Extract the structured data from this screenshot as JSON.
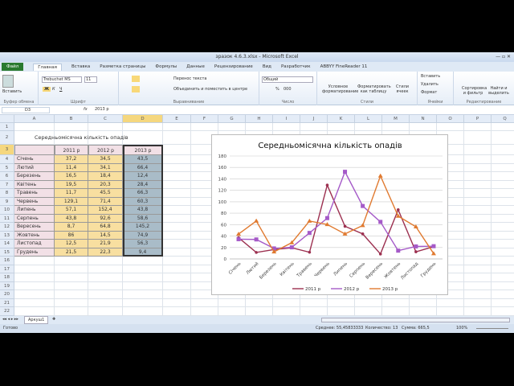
{
  "window": {
    "title": "зразок 4.6.3.xlsx - Microsoft Excel"
  },
  "ribbon_tabs": [
    "Файл",
    "Главная",
    "Вставка",
    "Разметка страницы",
    "Формулы",
    "Данные",
    "Рецензирование",
    "Вид",
    "Разработчик",
    "ABBYY FineReader 11"
  ],
  "ribbon": {
    "paste": "Вставить",
    "clipboard": "Буфер обмена",
    "font_name": "Trebuchet MS",
    "font_size": "11",
    "font_group": "Шрифт",
    "bold": "Ж",
    "italic": "К",
    "underline": "Ч",
    "wrap": "Перенос текста",
    "merge": "Объединить и поместить в центре",
    "align_group": "Выравнивание",
    "number_format": "Общий",
    "percent": "%",
    "thousands": "000",
    "number_group": "Число",
    "cond_format": "Условное форматирование",
    "format_table": "Форматировать как таблицу",
    "cell_styles": "Стили ячеек",
    "styles_group": "Стили",
    "insert": "Вставить",
    "delete": "Удалить",
    "format": "Формат",
    "cells_group": "Ячейки",
    "sort": "Сортировка и фильтр",
    "find": "Найти и выделить",
    "editing_group": "Редактирование"
  },
  "formula_bar": {
    "name_box": "D3",
    "fx": "fx",
    "value": "2013 р"
  },
  "columns": [
    "A",
    "B",
    "C",
    "D",
    "E",
    "F",
    "G",
    "H",
    "I",
    "J",
    "K",
    "L",
    "M",
    "N",
    "O",
    "P",
    "Q"
  ],
  "rows": [
    "1",
    "2",
    "3",
    "4",
    "5",
    "6",
    "7",
    "8",
    "9",
    "10",
    "11",
    "12",
    "13",
    "14",
    "15",
    "16",
    "17",
    "18",
    "19",
    "20",
    "21",
    "22"
  ],
  "table": {
    "title": "Середньомісячна кількість опадів",
    "headers": [
      "2011 р",
      "2012 р",
      "2013 р"
    ],
    "rows": [
      [
        "Січень",
        "37,2",
        "34,5",
        "43,5"
      ],
      [
        "Лютий",
        "11,4",
        "34,1",
        "66,4"
      ],
      [
        "Березень",
        "16,5",
        "18,4",
        "12,4"
      ],
      [
        "Квітень",
        "19,5",
        "20,3",
        "28,4"
      ],
      [
        "Травень",
        "11,7",
        "45,5",
        "66,3"
      ],
      [
        "Червень",
        "129,1",
        "71,4",
        "60,3"
      ],
      [
        "Липень",
        "57,1",
        "152,4",
        "43,8"
      ],
      [
        "Серпень",
        "43,8",
        "92,6",
        "58,6"
      ],
      [
        "Вересень",
        "8,7",
        "64,8",
        "145,2"
      ],
      [
        "Жовтень",
        "86",
        "14,5",
        "74,9"
      ],
      [
        "Листопад",
        "12,5",
        "21,9",
        "56,3"
      ],
      [
        "Грудень",
        "21,5",
        "22,3",
        "9,4"
      ]
    ]
  },
  "chart_data": {
    "type": "line",
    "title": "Середньомісячна кількість опадів",
    "ylim": [
      0,
      180
    ],
    "yticks": [
      "0",
      "20",
      "40",
      "60",
      "80",
      "100",
      "120",
      "140",
      "160",
      "180"
    ],
    "grid": true,
    "legend": "bottom",
    "categories": [
      "Січень",
      "Лютий",
      "Березень",
      "Квітень",
      "Травень",
      "Червень",
      "Липень",
      "Серпень",
      "Вересень",
      "Жовтень",
      "Листопад",
      "Грудень"
    ],
    "series": [
      {
        "name": "2011 р",
        "color": "#9c3050",
        "marker": "star",
        "values": [
          37.2,
          11.4,
          16.5,
          19.5,
          11.7,
          129.1,
          57.1,
          43.8,
          8.7,
          86,
          12.5,
          21.5
        ]
      },
      {
        "name": "2012 р",
        "color": "#a55ac8",
        "marker": "square",
        "values": [
          34.5,
          34.1,
          18.4,
          20.3,
          45.5,
          71.4,
          152.4,
          92.6,
          64.8,
          14.5,
          21.9,
          22.3
        ]
      },
      {
        "name": "2013 р",
        "color": "#e07a30",
        "marker": "triangle",
        "values": [
          43.5,
          66.4,
          12.4,
          28.4,
          66.3,
          60.3,
          43.8,
          58.6,
          145.2,
          74.9,
          56.3,
          9.4
        ]
      }
    ]
  },
  "sheet_tabs": [
    "Аркуш1"
  ],
  "status": {
    "ready": "Готово",
    "average": "Среднее: 55,45833333",
    "count": "Количество: 13",
    "sum": "Сумма: 665,5",
    "zoom": "100%"
  }
}
